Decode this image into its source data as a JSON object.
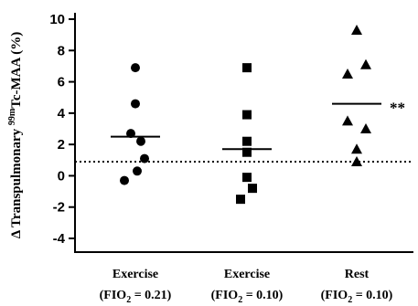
{
  "chart_data": {
    "type": "scatter",
    "ylabel": {
      "prefix": "Δ Transpulmonary ",
      "superscript": "99m",
      "suffix": "Tc-MAA (%)"
    },
    "ylim": [
      -5,
      10
    ],
    "yticks": [
      -4,
      -2,
      0,
      2,
      4,
      6,
      8,
      10
    ],
    "reference_line": 0.9,
    "categories": [
      {
        "line1": "Exercise",
        "line2_prefix": "(FIO",
        "line2_sub": "2",
        "line2_suffix": " = 0.21)"
      },
      {
        "line1": "Exercise",
        "line2_prefix": "(FIO",
        "line2_sub": "2",
        "line2_suffix": " = 0.10)"
      },
      {
        "line1": "Rest",
        "line2_prefix": "(FIO",
        "line2_sub": "2",
        "line2_suffix": " = 0.10)"
      }
    ],
    "series": [
      {
        "marker": "circle",
        "values": [
          6.9,
          4.6,
          2.7,
          2.2,
          1.1,
          0.3,
          -0.3
        ],
        "mean": 2.5,
        "annotation": ""
      },
      {
        "marker": "square",
        "values": [
          6.9,
          3.9,
          2.2,
          1.5,
          -0.1,
          -0.8,
          -1.5
        ],
        "mean": 1.7,
        "annotation": ""
      },
      {
        "marker": "triangle",
        "values": [
          9.3,
          7.1,
          6.5,
          3.5,
          3.0,
          1.7,
          0.9
        ],
        "mean": 4.6,
        "annotation": "**"
      }
    ]
  }
}
